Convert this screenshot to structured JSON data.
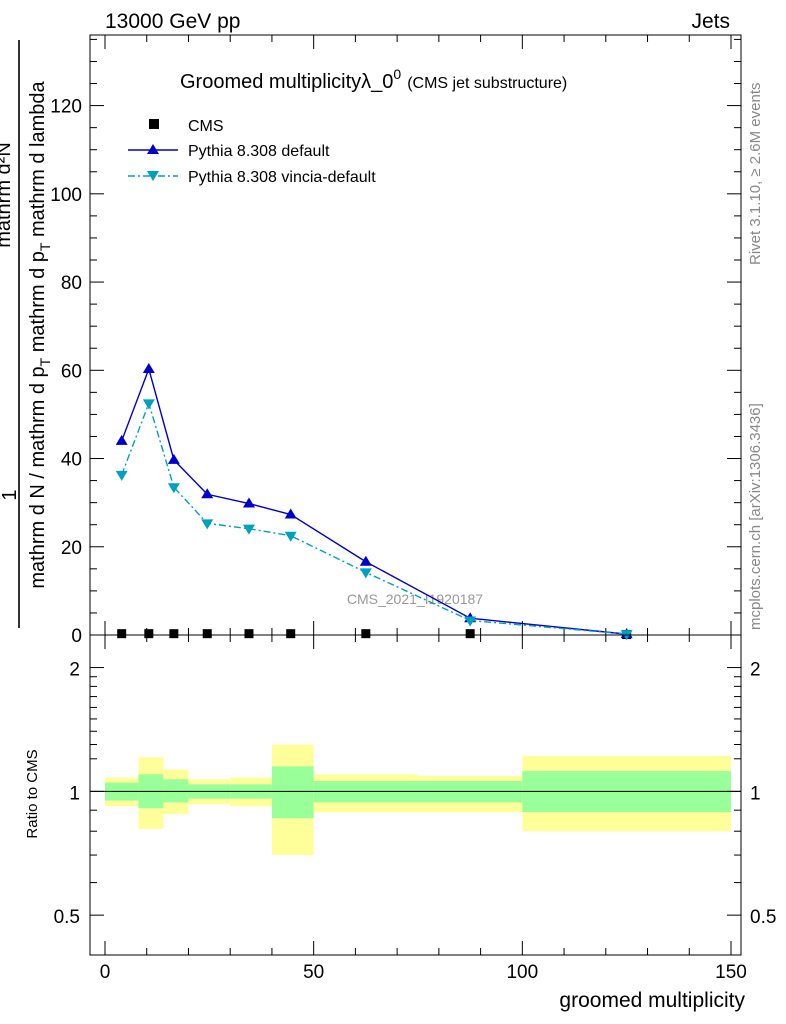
{
  "header": {
    "left": "13000 GeV pp",
    "right": "Jets"
  },
  "side_labels": {
    "rivet": "Rivet 3.1.10, ≥ 2.6M events",
    "mcplots": "mcplots.cern.ch [arXiv:1306.3436]"
  },
  "watermark": "CMS_2021_I1920187",
  "ratio_ylabel": "Ratio to CMS",
  "chart_data": {
    "type": "line",
    "title": "Groomed multiplicity",
    "title_math": "λ_0",
    "title_sup": "0",
    "subtitle": "(CMS jet substructure)",
    "ylabel_numer": "mathrm d²N",
    "ylabel_denom_prefix": "mathrm d N / mathrm d p",
    "ylabel_denom_sub": "T",
    "ylabel_denom_mid": " mathrm d p",
    "ylabel_denom_mid_sub": "T",
    "ylabel_denom_suffix": " mathrm d lambda",
    "ylabel_frac_one": "1",
    "xlabel": "groomed multiplicity",
    "xlim": [
      0,
      150
    ],
    "ylim": [
      0,
      136
    ],
    "x_ticks": [
      0,
      50,
      100,
      150
    ],
    "y_ticks": [
      0,
      20,
      40,
      60,
      80,
      100,
      120
    ],
    "ratio_ylim": [
      0.4,
      2.4
    ],
    "ratio_ticks": [
      0.5,
      1,
      2
    ],
    "legend_position": "top-left",
    "series": [
      {
        "name": "CMS",
        "color": "#000000",
        "marker": "square",
        "x": [
          4,
          10.5,
          16.5,
          24.5,
          34.5,
          44.5,
          62.5,
          87.5,
          125
        ],
        "y": [
          0.3,
          0.3,
          0.3,
          0.3,
          0.3,
          0.3,
          0.3,
          0.3,
          0.1
        ]
      },
      {
        "name": "Pythia 8.308 default",
        "color": "#0000cc",
        "marker": "triangle-up",
        "dash": "",
        "x": [
          4,
          10.5,
          16.5,
          24.5,
          34.5,
          44.5,
          62.5,
          87.5,
          125
        ],
        "y": [
          44,
          60.3,
          39.7,
          31.9,
          29.8,
          27.3,
          16.6,
          3.8,
          0.2
        ]
      },
      {
        "name": "Pythia 8.308 vincia-default",
        "color": "#00a0c0",
        "marker": "triangle-down",
        "dash": "7,3,2,3",
        "x": [
          4,
          10.5,
          16.5,
          24.5,
          34.5,
          44.5,
          62.5,
          87.5,
          125
        ],
        "y": [
          36.3,
          52.5,
          33.5,
          25.3,
          24.1,
          22.5,
          14.2,
          3.3,
          0.2
        ]
      }
    ],
    "uncertainty_bands": [
      {
        "xlo": 0,
        "xhi": 8,
        "stat_lo": 0.95,
        "stat_hi": 1.05,
        "tot_lo": 0.92,
        "tot_hi": 1.08
      },
      {
        "xlo": 8,
        "xhi": 14,
        "stat_lo": 0.91,
        "stat_hi": 1.1,
        "tot_lo": 0.81,
        "tot_hi": 1.21
      },
      {
        "xlo": 14,
        "xhi": 20,
        "stat_lo": 0.94,
        "stat_hi": 1.07,
        "tot_lo": 0.88,
        "tot_hi": 1.13
      },
      {
        "xlo": 20,
        "xhi": 30,
        "stat_lo": 0.96,
        "stat_hi": 1.04,
        "tot_lo": 0.93,
        "tot_hi": 1.07
      },
      {
        "xlo": 30,
        "xhi": 40,
        "stat_lo": 0.96,
        "stat_hi": 1.04,
        "tot_lo": 0.92,
        "tot_hi": 1.08
      },
      {
        "xlo": 40,
        "xhi": 50,
        "stat_lo": 0.86,
        "stat_hi": 1.15,
        "tot_lo": 0.7,
        "tot_hi": 1.3
      },
      {
        "xlo": 50,
        "xhi": 75,
        "stat_lo": 0.94,
        "stat_hi": 1.06,
        "tot_lo": 0.89,
        "tot_hi": 1.1
      },
      {
        "xlo": 75,
        "xhi": 100,
        "stat_lo": 0.94,
        "stat_hi": 1.06,
        "tot_lo": 0.89,
        "tot_hi": 1.09
      },
      {
        "xlo": 100,
        "xhi": 150,
        "stat_lo": 0.89,
        "stat_hi": 1.12,
        "tot_lo": 0.8,
        "tot_hi": 1.22
      }
    ],
    "colors": {
      "stat_band": "#99ff99",
      "total_band": "#ffff99"
    }
  }
}
